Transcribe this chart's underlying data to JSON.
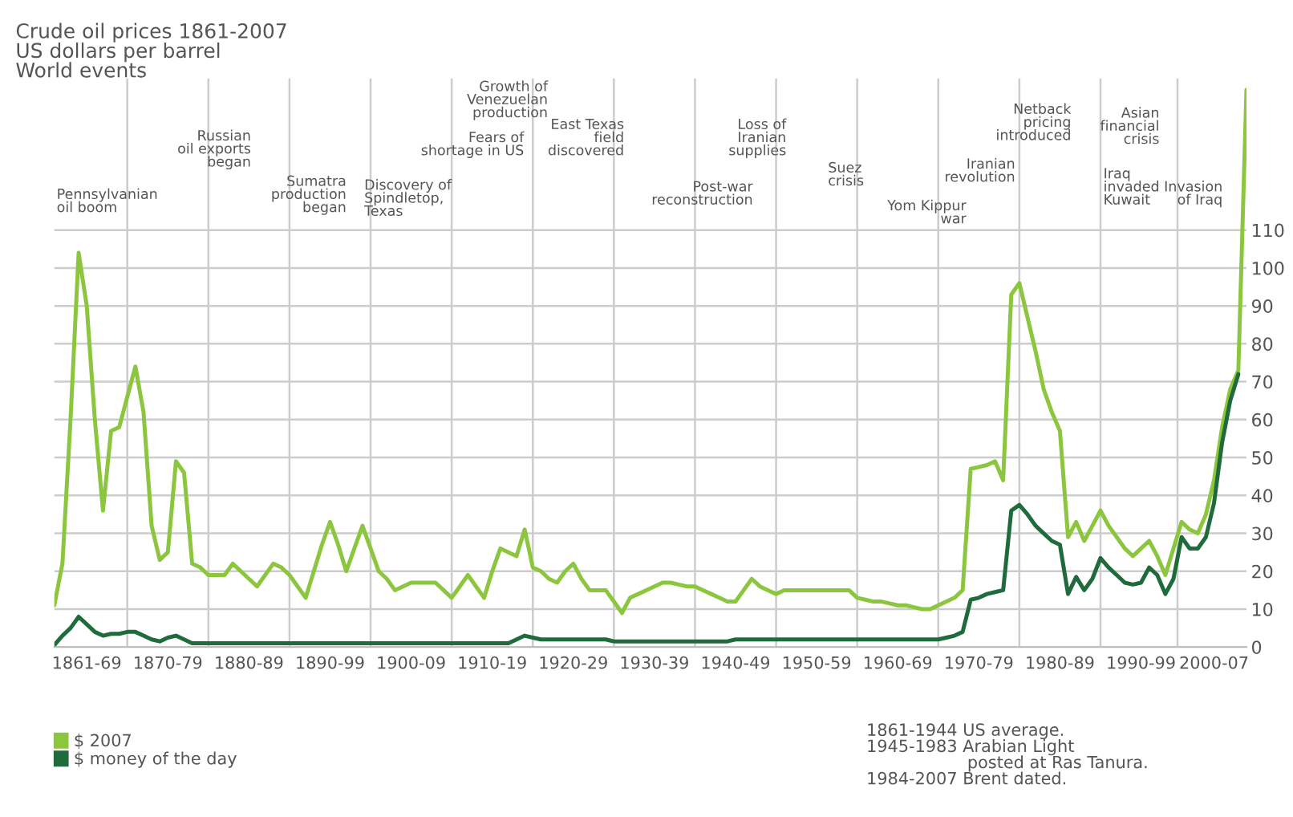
{
  "chart_data": {
    "type": "line",
    "title": "Crude oil prices 1861-2007",
    "subtitle": "US dollars per barrel",
    "categories": [
      null,
      null,
      null,
      null,
      "1861-69",
      null,
      null,
      null,
      null,
      null,
      null,
      null,
      null,
      null,
      "1870-79",
      null,
      null,
      null,
      null,
      null,
      null,
      null,
      null,
      null,
      "1880-89",
      null,
      null,
      null,
      null,
      null,
      null,
      null,
      null,
      null,
      "1890-99",
      null,
      null,
      null,
      null,
      null,
      null,
      null,
      null,
      null,
      "1900-09",
      null,
      null,
      null,
      null,
      null,
      null,
      null,
      null,
      null,
      "1910-19",
      null,
      null,
      null,
      null,
      null,
      null,
      null,
      null,
      null,
      "1920-29",
      null,
      null,
      null,
      null,
      null,
      null,
      null,
      null,
      null,
      "1930-39",
      null,
      null,
      null,
      null,
      null,
      null,
      null,
      null,
      null,
      "1940-49",
      null,
      null,
      null,
      null,
      null,
      null,
      null,
      null,
      null,
      "1950-59",
      null,
      null,
      null,
      null,
      null,
      null,
      null,
      null,
      null,
      "1960-69",
      null,
      null,
      null,
      null,
      null,
      null,
      null,
      null,
      null,
      "1970-79",
      null,
      null,
      null,
      null,
      null,
      null,
      null,
      null,
      null,
      "1980-89",
      null,
      null,
      null,
      null,
      null,
      null,
      null,
      null,
      null,
      "1990-99",
      null,
      null,
      null,
      null,
      null,
      null,
      null,
      null,
      "2000-07",
      null,
      null,
      null,
      null
    ],
    "series": [
      {
        "name": "$ 2007",
        "color": "#8cc63f",
        "values": [
          11,
          22,
          60,
          104,
          90,
          60,
          36,
          57,
          58,
          66,
          74,
          62,
          32,
          23,
          25,
          49,
          46,
          22,
          21,
          19,
          19,
          19,
          22,
          20,
          18,
          16,
          19,
          22,
          21,
          19,
          16,
          13,
          20,
          27,
          33,
          27,
          20,
          26,
          32,
          26,
          20,
          18,
          15,
          16,
          17,
          17,
          17,
          17,
          15,
          13,
          16,
          19,
          16,
          13,
          20,
          26,
          25,
          24,
          31,
          21,
          20,
          18,
          17,
          20,
          22,
          18,
          15,
          15,
          15,
          12,
          9,
          13,
          14,
          15,
          16,
          17,
          17,
          16.5,
          16,
          16,
          15,
          14,
          13,
          12,
          12,
          15,
          18,
          16,
          15,
          14,
          15,
          15,
          15,
          15,
          15,
          15,
          15,
          15,
          15,
          13,
          12.5,
          12,
          12,
          11.5,
          11,
          11,
          10.5,
          10,
          10,
          11,
          12,
          13,
          15,
          47,
          47.5,
          48,
          49,
          44,
          93,
          96,
          87,
          78,
          68,
          62,
          57,
          29,
          33,
          28,
          32,
          36,
          32,
          29,
          26,
          24,
          26,
          28,
          24,
          19,
          26,
          33,
          31,
          30,
          35,
          44,
          58,
          68,
          73,
          147
        ]
      },
      {
        "name": "$ money of the day",
        "color": "#1f6b3b",
        "values": [
          0.5,
          3,
          5,
          8,
          6,
          4,
          3,
          3.5,
          3.5,
          4,
          4,
          3,
          2,
          1.5,
          2.5,
          3,
          2,
          1,
          1,
          1,
          1,
          1,
          1,
          1,
          1,
          1,
          1,
          1,
          1,
          1,
          1,
          1,
          1,
          1,
          1,
          1,
          1,
          1,
          1,
          1,
          1,
          1,
          1,
          1,
          1,
          1,
          1,
          1,
          1,
          1,
          1,
          1,
          1,
          1,
          1,
          1,
          1,
          2,
          3,
          2.5,
          2,
          2,
          2,
          2,
          2,
          2,
          2,
          2,
          2,
          1.5,
          1.5,
          1.5,
          1.5,
          1.5,
          1.5,
          1.5,
          1.5,
          1.5,
          1.5,
          1.5,
          1.5,
          1.5,
          1.5,
          1.5,
          2,
          2,
          2,
          2,
          2,
          2,
          2,
          2,
          2,
          2,
          2,
          2,
          2,
          2,
          2,
          2,
          2,
          2,
          2,
          2,
          2,
          2,
          2,
          2,
          2,
          2,
          2.5,
          3,
          4,
          12.5,
          13,
          14,
          14.5,
          15,
          36,
          37.5,
          35,
          32,
          30,
          28,
          27,
          14,
          18.5,
          15,
          18,
          23.5,
          21,
          19,
          17,
          16.5,
          17,
          21,
          19,
          14,
          18,
          29,
          26,
          26,
          29,
          38,
          54,
          65,
          72,
          null
        ]
      }
    ],
    "ylim": [
      0,
      150
    ],
    "yticks": [
      0,
      10,
      20,
      30,
      40,
      50,
      60,
      70,
      80,
      90,
      100,
      110
    ],
    "grid": true,
    "legend": "bottom left",
    "marker": "none",
    "line_style": "solid",
    "annotations": [
      "World events",
      "Pennsylvanian\noil boom",
      "Russian\noil exports\nbegan",
      "Sumatra\nproduction\nbegan",
      "Discovery of\nSpindletop,\nTexas",
      "Fears of\nshortage in US",
      "Growth of\nVenezuelan\nproduction",
      "East Texas\nfield\ndiscovered",
      "Post-war\nreconstruction",
      "Loss of\nIranian\nsupplies",
      "Suez\ncrisis",
      "Yom Kippur\nwar",
      "Iranian\nrevolution",
      "Netback\npricing\nintroduced",
      "Iraq\ninvaded\nKuwait",
      "Asian\nfinancial\ncrisis",
      "Invasion\nof Iraq",
      "1861-1944 US average.\n1945-1983 Arabian Light\n                   posted at Ras Tanura.\n1984-2007 Brent dated."
    ]
  }
}
